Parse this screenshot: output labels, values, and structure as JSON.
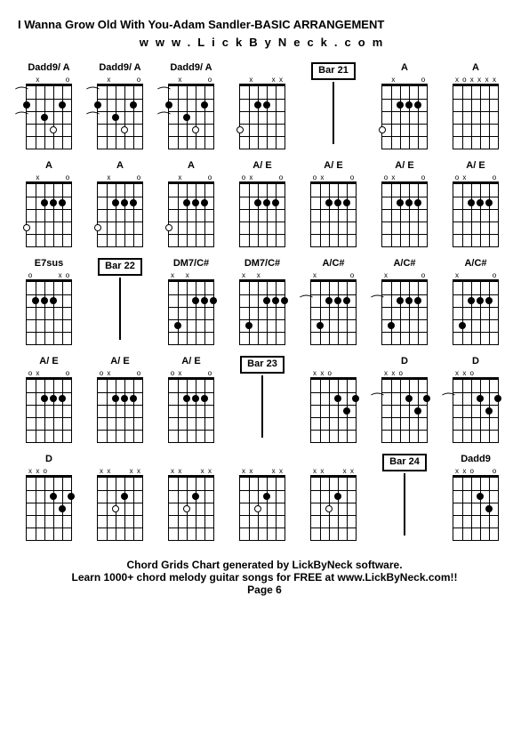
{
  "title": "I Wanna Grow Old With You-Adam Sandler-BASIC ARRANGEMENT",
  "subtitle": "www.LickByNeck.com",
  "footer_line1": "Chord Grids Chart generated by LickByNeck software.",
  "footer_line2": "Learn 1000+ chord melody guitar songs for FREE at www.LickByNeck.com!!",
  "footer_line3": "Page 6",
  "chords": [
    {
      "name": "Dadd9/ A",
      "marks": [
        "",
        "x",
        "",
        "",
        "",
        "o"
      ],
      "dots": [
        [
          0,
          2
        ],
        [
          2,
          3
        ],
        [
          4,
          2
        ]
      ],
      "opens": [
        [
          3,
          4
        ]
      ],
      "ties": [
        1,
        3
      ]
    },
    {
      "name": "Dadd9/ A",
      "marks": [
        "",
        "x",
        "",
        "",
        "",
        "o"
      ],
      "dots": [
        [
          0,
          2
        ],
        [
          2,
          3
        ],
        [
          4,
          2
        ]
      ],
      "opens": [
        [
          3,
          4
        ]
      ],
      "ties": [
        1,
        3
      ]
    },
    {
      "name": "Dadd9/ A",
      "marks": [
        "",
        "x",
        "",
        "",
        "",
        "o"
      ],
      "dots": [
        [
          0,
          2
        ],
        [
          2,
          3
        ],
        [
          4,
          2
        ]
      ],
      "opens": [
        [
          3,
          4
        ]
      ],
      "ties": [
        1,
        3
      ]
    },
    {
      "name": "",
      "marks": [
        "",
        "x",
        "",
        "",
        "x",
        "x"
      ],
      "dots": [
        [
          2,
          2
        ],
        [
          3,
          2
        ]
      ],
      "opens": [
        [
          0,
          4
        ]
      ],
      "ties": []
    },
    {
      "name": "Bar 21",
      "bar": true
    },
    {
      "name": "A",
      "marks": [
        "",
        "x",
        "",
        "",
        "",
        "o"
      ],
      "dots": [
        [
          2,
          2
        ],
        [
          3,
          2
        ],
        [
          4,
          2
        ]
      ],
      "opens": [
        [
          0,
          4
        ]
      ],
      "ties": []
    },
    {
      "name": "A",
      "marks": [
        "x",
        "o",
        "x",
        "x",
        "x",
        "x"
      ],
      "dots": [],
      "opens": [],
      "ties": []
    },
    {
      "name": "A",
      "marks": [
        "",
        "x",
        "",
        "",
        "",
        "o"
      ],
      "dots": [
        [
          2,
          2
        ],
        [
          3,
          2
        ],
        [
          4,
          2
        ]
      ],
      "opens": [
        [
          0,
          4
        ]
      ],
      "ties": []
    },
    {
      "name": "A",
      "marks": [
        "",
        "x",
        "",
        "",
        "",
        "o"
      ],
      "dots": [
        [
          2,
          2
        ],
        [
          3,
          2
        ],
        [
          4,
          2
        ]
      ],
      "opens": [
        [
          0,
          4
        ]
      ],
      "ties": []
    },
    {
      "name": "A",
      "marks": [
        "",
        "x",
        "",
        "",
        "",
        "o"
      ],
      "dots": [
        [
          2,
          2
        ],
        [
          3,
          2
        ],
        [
          4,
          2
        ]
      ],
      "opens": [
        [
          0,
          4
        ]
      ],
      "ties": []
    },
    {
      "name": "A/ E",
      "marks": [
        "o",
        "x",
        "",
        "",
        "",
        "o"
      ],
      "dots": [
        [
          2,
          2
        ],
        [
          3,
          2
        ],
        [
          4,
          2
        ]
      ],
      "opens": [],
      "ties": []
    },
    {
      "name": "A/ E",
      "marks": [
        "o",
        "x",
        "",
        "",
        "",
        "o"
      ],
      "dots": [
        [
          2,
          2
        ],
        [
          3,
          2
        ],
        [
          4,
          2
        ]
      ],
      "opens": [],
      "ties": []
    },
    {
      "name": "A/ E",
      "marks": [
        "o",
        "x",
        "",
        "",
        "",
        "o"
      ],
      "dots": [
        [
          2,
          2
        ],
        [
          3,
          2
        ],
        [
          4,
          2
        ]
      ],
      "opens": [],
      "ties": []
    },
    {
      "name": "A/ E",
      "marks": [
        "o",
        "x",
        "",
        "",
        "",
        "o"
      ],
      "dots": [
        [
          2,
          2
        ],
        [
          3,
          2
        ],
        [
          4,
          2
        ]
      ],
      "opens": [],
      "ties": []
    },
    {
      "name": "E7sus",
      "marks": [
        "o",
        "",
        "",
        "",
        "x",
        "o"
      ],
      "dots": [
        [
          1,
          2
        ],
        [
          2,
          2
        ],
        [
          3,
          2
        ]
      ],
      "opens": [],
      "ties": []
    },
    {
      "name": "Bar 22",
      "bar": true
    },
    {
      "name": "DM7/C#",
      "marks": [
        "x",
        "",
        "x",
        "",
        "",
        ""
      ],
      "dots": [
        [
          1,
          4
        ],
        [
          3,
          2
        ],
        [
          4,
          2
        ],
        [
          5,
          2
        ]
      ],
      "opens": [],
      "ties": []
    },
    {
      "name": "DM7/C#",
      "marks": [
        "x",
        "",
        "x",
        "",
        "",
        ""
      ],
      "dots": [
        [
          1,
          4
        ],
        [
          3,
          2
        ],
        [
          4,
          2
        ],
        [
          5,
          2
        ]
      ],
      "opens": [],
      "ties": []
    },
    {
      "name": "A/C#",
      "marks": [
        "x",
        "",
        "",
        "",
        "",
        "o"
      ],
      "dots": [
        [
          1,
          4
        ],
        [
          2,
          2
        ],
        [
          3,
          2
        ],
        [
          4,
          2
        ]
      ],
      "opens": [],
      "ties": [
        2
      ]
    },
    {
      "name": "A/C#",
      "marks": [
        "x",
        "",
        "",
        "",
        "",
        "o"
      ],
      "dots": [
        [
          1,
          4
        ],
        [
          2,
          2
        ],
        [
          3,
          2
        ],
        [
          4,
          2
        ]
      ],
      "opens": [],
      "ties": [
        2
      ]
    },
    {
      "name": "A/C#",
      "marks": [
        "x",
        "",
        "",
        "",
        "",
        "o"
      ],
      "dots": [
        [
          1,
          4
        ],
        [
          2,
          2
        ],
        [
          3,
          2
        ],
        [
          4,
          2
        ]
      ],
      "opens": [],
      "ties": []
    },
    {
      "name": "A/ E",
      "marks": [
        "o",
        "x",
        "",
        "",
        "",
        "o"
      ],
      "dots": [
        [
          2,
          2
        ],
        [
          3,
          2
        ],
        [
          4,
          2
        ]
      ],
      "opens": [],
      "ties": []
    },
    {
      "name": "A/ E",
      "marks": [
        "o",
        "x",
        "",
        "",
        "",
        "o"
      ],
      "dots": [
        [
          2,
          2
        ],
        [
          3,
          2
        ],
        [
          4,
          2
        ]
      ],
      "opens": [],
      "ties": []
    },
    {
      "name": "A/ E",
      "marks": [
        "o",
        "x",
        "",
        "",
        "",
        "o"
      ],
      "dots": [
        [
          2,
          2
        ],
        [
          3,
          2
        ],
        [
          4,
          2
        ]
      ],
      "opens": [],
      "ties": []
    },
    {
      "name": "Bar 23",
      "bar": true
    },
    {
      "name": "",
      "marks": [
        "x",
        "x",
        "o",
        "",
        "",
        ""
      ],
      "dots": [
        [
          3,
          2
        ],
        [
          4,
          3
        ],
        [
          5,
          2
        ]
      ],
      "opens": [],
      "ties": []
    },
    {
      "name": "D",
      "marks": [
        "x",
        "x",
        "o",
        "",
        "",
        ""
      ],
      "dots": [
        [
          3,
          2
        ],
        [
          4,
          3
        ],
        [
          5,
          2
        ]
      ],
      "opens": [],
      "ties": [
        2
      ]
    },
    {
      "name": "D",
      "marks": [
        "x",
        "x",
        "o",
        "",
        "",
        ""
      ],
      "dots": [
        [
          3,
          2
        ],
        [
          4,
          3
        ],
        [
          5,
          2
        ]
      ],
      "opens": [],
      "ties": [
        2
      ]
    },
    {
      "name": "D",
      "marks": [
        "x",
        "x",
        "o",
        "",
        "",
        ""
      ],
      "dots": [
        [
          3,
          2
        ],
        [
          4,
          3
        ],
        [
          5,
          2
        ]
      ],
      "opens": [],
      "ties": []
    },
    {
      "name": "",
      "marks": [
        "x",
        "x",
        "",
        "",
        "x",
        "x"
      ],
      "dots": [
        [
          3,
          2
        ]
      ],
      "opens": [
        [
          2,
          3
        ]
      ],
      "ties": []
    },
    {
      "name": "",
      "marks": [
        "x",
        "x",
        "",
        "",
        "x",
        "x"
      ],
      "dots": [
        [
          3,
          2
        ]
      ],
      "opens": [
        [
          2,
          3
        ]
      ],
      "ties": []
    },
    {
      "name": "",
      "marks": [
        "x",
        "x",
        "",
        "",
        "x",
        "x"
      ],
      "dots": [
        [
          3,
          2
        ]
      ],
      "opens": [
        [
          2,
          3
        ]
      ],
      "ties": []
    },
    {
      "name": "",
      "marks": [
        "x",
        "x",
        "",
        "",
        "x",
        "x"
      ],
      "dots": [
        [
          3,
          2
        ]
      ],
      "opens": [
        [
          2,
          3
        ]
      ],
      "ties": []
    },
    {
      "name": "Bar 24",
      "bar": true
    },
    {
      "name": "Dadd9",
      "marks": [
        "x",
        "x",
        "o",
        "",
        "",
        "o"
      ],
      "dots": [
        [
          3,
          2
        ],
        [
          4,
          3
        ]
      ],
      "opens": [],
      "ties": []
    }
  ]
}
